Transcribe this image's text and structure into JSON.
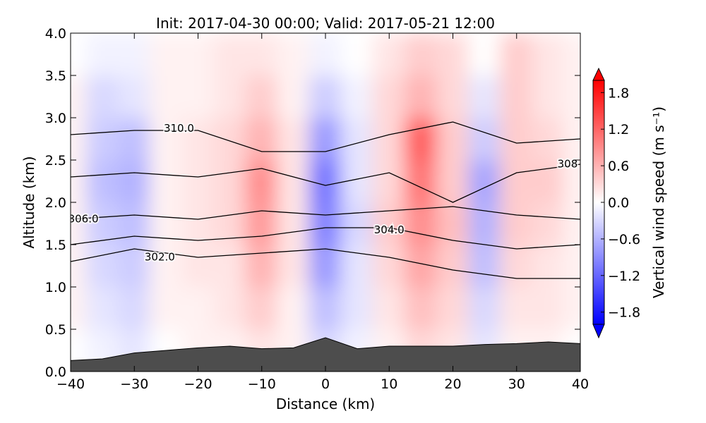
{
  "chart_data": {
    "type": "contourf",
    "title": "Init: 2017-04-30 00:00; Valid: 2017-05-21 12:00",
    "xlabel": "Distance (km)",
    "ylabel": "Altitude (km)",
    "xlim": [
      -40,
      40
    ],
    "ylim": [
      0,
      4
    ],
    "xticks": [
      {
        "value": -40,
        "label": "−40"
      },
      {
        "value": -30,
        "label": "−30"
      },
      {
        "value": -20,
        "label": "−20"
      },
      {
        "value": -10,
        "label": "−10"
      },
      0,
      10,
      20,
      30,
      40
    ],
    "yticks": [
      {
        "value": 0,
        "label": "0.0"
      },
      0.5,
      {
        "value": 1,
        "label": "1.0"
      },
      1.5,
      {
        "value": 2,
        "label": "2.0"
      },
      2.5,
      {
        "value": 3,
        "label": "3.0"
      },
      3.5,
      {
        "value": 4,
        "label": "4.0"
      }
    ],
    "field": {
      "x": [
        -40,
        -35,
        -30,
        -25,
        -20,
        -15,
        -10,
        -5,
        0,
        5,
        10,
        15,
        20,
        25,
        30,
        35,
        40
      ],
      "y": [
        0.25,
        0.75,
        1.25,
        1.75,
        2.25,
        2.75,
        3.25,
        3.75
      ],
      "values": [
        [
          0,
          -0.1,
          -0.2,
          0,
          0.1,
          0.1,
          0.2,
          0.1,
          -0.3,
          -0.1,
          0.1,
          0.3,
          0.2,
          -0.2,
          0.1,
          0.1,
          0
        ],
        [
          0.1,
          -0.2,
          -0.3,
          0.1,
          0.1,
          0.2,
          0.4,
          0.1,
          -0.5,
          -0.2,
          0.2,
          0.5,
          0.3,
          -0.3,
          0.2,
          0.2,
          0.1
        ],
        [
          0.1,
          -0.3,
          -0.4,
          0.1,
          0.2,
          0.2,
          0.6,
          0.2,
          -0.8,
          -0.2,
          0.3,
          0.7,
          0.4,
          -0.5,
          0.3,
          0.2,
          0.1
        ],
        [
          0.1,
          -0.4,
          -0.5,
          0.1,
          0.2,
          0.3,
          0.8,
          0.2,
          -1.0,
          -0.3,
          0.4,
          0.9,
          0.5,
          -0.6,
          0.4,
          0.3,
          0.1
        ],
        [
          0.1,
          -0.5,
          -0.6,
          0.1,
          0.2,
          0.3,
          0.9,
          0.2,
          -1.1,
          -0.2,
          0.3,
          1.1,
          0.4,
          -0.7,
          0.4,
          0.4,
          0.1
        ],
        [
          0.1,
          -0.4,
          -0.5,
          0.1,
          0.2,
          0.3,
          0.6,
          0.2,
          -0.8,
          -0.2,
          0.3,
          1.3,
          0.4,
          -0.4,
          0.4,
          0.3,
          0.1
        ],
        [
          0.1,
          -0.3,
          -0.2,
          0.1,
          0.1,
          0.2,
          0.4,
          0.1,
          -0.4,
          -0.1,
          0.3,
          0.6,
          0.3,
          -0.2,
          0.4,
          0.2,
          0.1
        ],
        [
          0,
          -0.1,
          -0.1,
          0.1,
          0.1,
          0.2,
          0.2,
          0.1,
          -0.1,
          0,
          0.2,
          0.4,
          0.3,
          0,
          0.4,
          0.2,
          0.1
        ]
      ]
    },
    "contours": {
      "x": [
        -40,
        -30,
        -20,
        -10,
        0,
        10,
        20,
        30,
        40
      ],
      "lines": [
        {
          "label": "302.0",
          "label_x": -26,
          "label_y": 1.35,
          "values": [
            1.3,
            1.45,
            1.35,
            1.4,
            1.45,
            1.35,
            1.2,
            1.1,
            1.1
          ]
        },
        {
          "label": "304.0",
          "label_x": 10,
          "label_y": 1.67,
          "values": [
            1.5,
            1.6,
            1.55,
            1.6,
            1.7,
            1.7,
            1.55,
            1.45,
            1.5
          ]
        },
        {
          "label": "306.0",
          "label_x": -38,
          "label_y": 1.8,
          "values": [
            1.8,
            1.85,
            1.8,
            1.9,
            1.85,
            1.9,
            1.95,
            1.85,
            1.8
          ]
        },
        {
          "label": "308",
          "label_x": 38,
          "label_y": 2.45,
          "values": [
            2.3,
            2.35,
            2.3,
            2.4,
            2.2,
            2.35,
            2.0,
            2.35,
            2.45
          ]
        },
        {
          "label": "310.0",
          "label_x": -23,
          "label_y": 2.87,
          "values": [
            2.8,
            2.85,
            2.85,
            2.6,
            2.6,
            2.8,
            2.95,
            2.7,
            2.75
          ]
        }
      ]
    },
    "terrain": {
      "color": "#4d4d4d",
      "x": [
        -40,
        -35,
        -30,
        -25,
        -20,
        -15,
        -10,
        -5,
        0,
        5,
        10,
        15,
        20,
        25,
        30,
        35,
        40
      ],
      "values": [
        0.13,
        0.15,
        0.22,
        0.25,
        0.28,
        0.3,
        0.27,
        0.28,
        0.4,
        0.27,
        0.3,
        0.3,
        0.3,
        0.32,
        0.33,
        0.35,
        0.33
      ]
    },
    "colorbar": {
      "label": "Vertical wind speed (m s⁻¹)",
      "lim": [
        -2,
        2
      ],
      "ticks": [
        {
          "value": -1.8,
          "label": "−1.8"
        },
        {
          "value": -1.2,
          "label": "−1.2"
        },
        {
          "value": -0.6,
          "label": "−0.6"
        },
        {
          "value": 0,
          "label": "0.0"
        },
        0.6,
        1.2,
        1.8
      ]
    }
  }
}
